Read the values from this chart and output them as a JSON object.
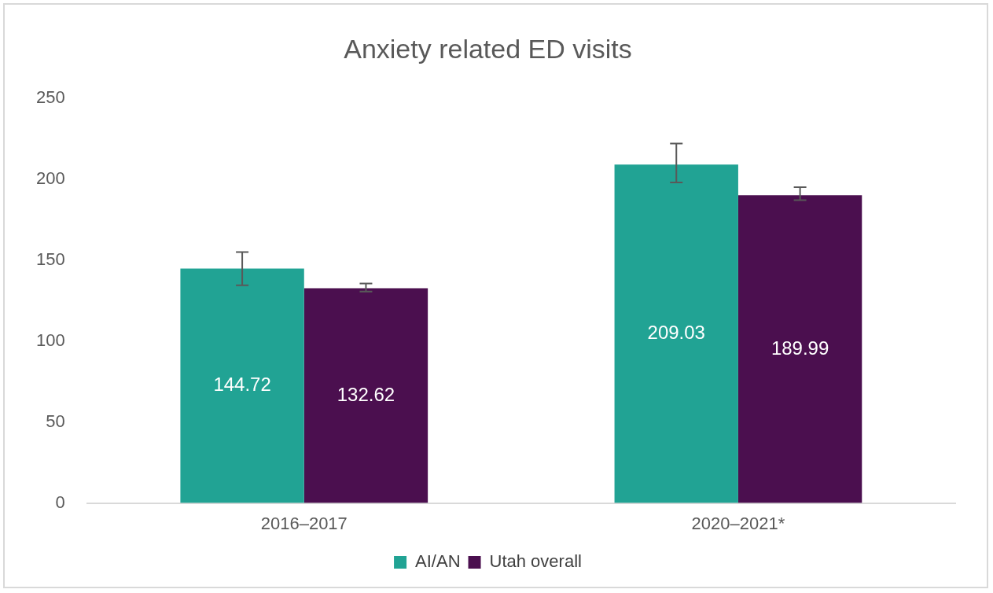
{
  "chart_data": {
    "type": "bar",
    "title": "Anxiety related ED visits",
    "categories": [
      "2016–2017",
      "2020–2021*"
    ],
    "series": [
      {
        "name": "AI/AN",
        "color": "#21a394",
        "values": [
          144.72,
          209.03
        ],
        "errors": [
          [
            134.5,
            155
          ],
          [
            198,
            222
          ]
        ]
      },
      {
        "name": "Utah overall",
        "color": "#4b0f4f",
        "values": [
          132.62,
          189.99
        ],
        "errors": [
          [
            130.5,
            135.5
          ],
          [
            187,
            195
          ]
        ]
      }
    ],
    "ylim": [
      0,
      250
    ],
    "yticks": [
      0,
      50,
      100,
      150,
      200,
      250
    ],
    "grid": false,
    "legend": "bottom",
    "data_labels": true
  }
}
